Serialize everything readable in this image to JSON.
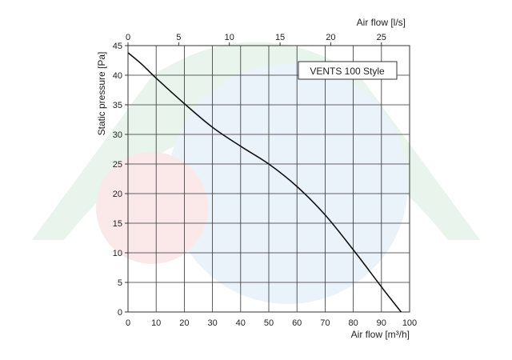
{
  "chart_data": {
    "type": "line",
    "xlabel": "Air flow [m³/h]",
    "x2label": "Air flow [l/s]",
    "ylabel": "Static pressure [Pa]",
    "legend_label": "VENTS 100 Style",
    "legend_position": "top-right",
    "grid": true,
    "xlim": [
      0,
      100
    ],
    "x2lim": [
      0,
      27.78
    ],
    "ylim": [
      0,
      45
    ],
    "x_ticks": [
      0,
      10,
      20,
      30,
      40,
      50,
      60,
      70,
      80,
      90,
      100
    ],
    "x2_ticks": [
      0,
      5,
      10,
      15,
      20,
      25
    ],
    "y_ticks": [
      0,
      5,
      10,
      15,
      20,
      25,
      30,
      35,
      40,
      45
    ],
    "series": [
      {
        "x": [
          0,
          5,
          10,
          20,
          30,
          40,
          50,
          60,
          70,
          80,
          88,
          92,
          97
        ],
        "y": [
          43.8,
          41.8,
          39.5,
          35.2,
          31.2,
          28,
          25,
          21.2,
          16.4,
          10.5,
          5.5,
          3,
          0
        ]
      }
    ]
  },
  "colors": {
    "line": "#111111",
    "grid": "#333333",
    "watermark_green": "#e6f3ea",
    "watermark_blue": "#e8f1fa",
    "watermark_red": "#fbe7e7"
  }
}
